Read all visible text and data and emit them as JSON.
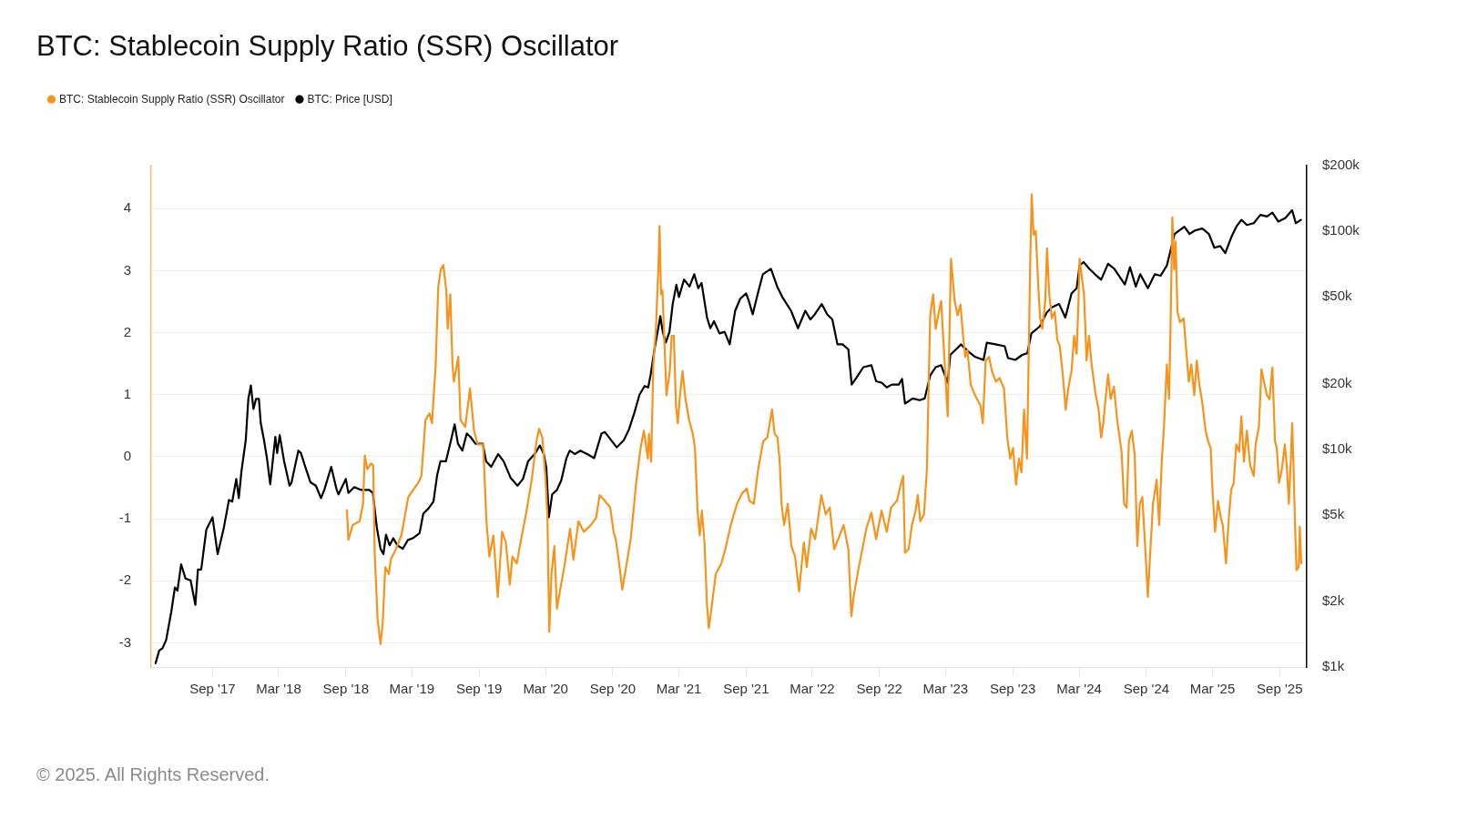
{
  "chart_data": {
    "type": "line",
    "title": "BTC: Stablecoin Supply Ratio (SSR) Oscillator",
    "series": [
      {
        "name": "BTC: Stablecoin Supply Ratio (SSR) Oscillator",
        "color": "#f7931a",
        "x": [
          "2018-09-04",
          "2018-09-08",
          "2018-09-20",
          "2018-10-09",
          "2018-10-18",
          "2018-10-23",
          "2018-10-30",
          "2018-11-09",
          "2018-11-15",
          "2018-11-19",
          "2018-11-27",
          "2018-12-05",
          "2018-12-11",
          "2018-12-18",
          "2018-12-28",
          "2019-01-02",
          "2019-01-16",
          "2019-01-31",
          "2019-02-19",
          "2019-03-04",
          "2019-03-18",
          "2019-03-27",
          "2019-04-07",
          "2019-04-18",
          "2019-04-25",
          "2019-05-05",
          "2019-05-12",
          "2019-05-19",
          "2019-05-26",
          "2019-06-03",
          "2019-06-07",
          "2019-06-14",
          "2019-06-20",
          "2019-06-24",
          "2019-07-06",
          "2019-07-12",
          "2019-07-25",
          "2019-08-07",
          "2019-08-18",
          "2019-08-28",
          "2019-09-12",
          "2019-09-21",
          "2019-09-29",
          "2019-10-10",
          "2019-10-22",
          "2019-11-03",
          "2019-11-13",
          "2019-11-24",
          "2019-12-01",
          "2019-12-13",
          "2019-12-25",
          "2020-01-09",
          "2020-01-23",
          "2020-02-05",
          "2020-02-12",
          "2020-02-21",
          "2020-03-01",
          "2020-03-06",
          "2020-03-11",
          "2020-03-17",
          "2020-03-25",
          "2020-04-01",
          "2020-04-09",
          "2020-04-21",
          "2020-05-07",
          "2020-05-16",
          "2020-05-30",
          "2020-06-14",
          "2020-07-03",
          "2020-07-17",
          "2020-07-27",
          "2020-08-06",
          "2020-08-25",
          "2020-09-03",
          "2020-09-09",
          "2020-09-17",
          "2020-09-27",
          "2020-10-09",
          "2020-10-20",
          "2020-11-04",
          "2020-11-16",
          "2020-11-25",
          "2020-12-06",
          "2020-12-09",
          "2020-12-15",
          "2020-12-21",
          "2020-12-28",
          "2021-01-04",
          "2021-01-07",
          "2021-01-11",
          "2021-01-15",
          "2021-01-20",
          "2021-01-26",
          "2021-02-04",
          "2021-02-09",
          "2021-02-15",
          "2021-02-21",
          "2021-02-26",
          "2021-03-04",
          "2021-03-11",
          "2021-03-19",
          "2021-03-29",
          "2021-04-08",
          "2021-04-14",
          "2021-04-21",
          "2021-04-27",
          "2021-05-03",
          "2021-05-10",
          "2021-05-17",
          "2021-05-22",
          "2021-05-29",
          "2021-06-10",
          "2021-06-25",
          "2021-07-06",
          "2021-07-21",
          "2021-08-07",
          "2021-08-21",
          "2021-09-03",
          "2021-09-10",
          "2021-09-22",
          "2021-10-04",
          "2021-10-18",
          "2021-10-29",
          "2021-11-11",
          "2021-11-18",
          "2021-11-26",
          "2021-12-02",
          "2021-12-07",
          "2021-12-14",
          "2021-12-24",
          "2022-01-03",
          "2022-01-13",
          "2022-01-24",
          "2022-02-06",
          "2022-02-14",
          "2022-02-26",
          "2022-03-09",
          "2022-03-26",
          "2022-04-07",
          "2022-04-18",
          "2022-04-30",
          "2022-05-15",
          "2022-05-26",
          "2022-06-08",
          "2022-06-16",
          "2022-06-23",
          "2022-07-05",
          "2022-07-18",
          "2022-07-27",
          "2022-08-10",
          "2022-08-23",
          "2022-09-07",
          "2022-09-21",
          "2022-10-03",
          "2022-10-19",
          "2022-10-28",
          "2022-11-05",
          "2022-11-10",
          "2022-11-20",
          "2022-11-29",
          "2022-12-09",
          "2022-12-15",
          "2022-12-22",
          "2023-01-01",
          "2023-01-09",
          "2023-01-13",
          "2023-01-18",
          "2023-01-26",
          "2023-02-02",
          "2023-02-09",
          "2023-02-17",
          "2023-02-24",
          "2023-03-07",
          "2023-03-16",
          "2023-03-26",
          "2023-04-03",
          "2023-04-11",
          "2023-04-18",
          "2023-04-24",
          "2023-04-30",
          "2023-05-09",
          "2023-05-21",
          "2023-06-05",
          "2023-06-11",
          "2023-06-19",
          "2023-06-28",
          "2023-07-06",
          "2023-07-17",
          "2023-07-27",
          "2023-08-08",
          "2023-08-17",
          "2023-08-25",
          "2023-09-02",
          "2023-09-10",
          "2023-09-18",
          "2023-09-25",
          "2023-10-02",
          "2023-10-10",
          "2023-10-14",
          "2023-10-19",
          "2023-10-23",
          "2023-10-28",
          "2023-11-03",
          "2023-11-10",
          "2023-11-15",
          "2023-11-21",
          "2023-11-29",
          "2023-12-04",
          "2023-12-10",
          "2023-12-17",
          "2023-12-25",
          "2024-01-01",
          "2024-01-08",
          "2024-01-16",
          "2024-01-24",
          "2024-01-31",
          "2024-02-09",
          "2024-02-16",
          "2024-02-23",
          "2024-02-28",
          "2024-03-02",
          "2024-03-08",
          "2024-03-14",
          "2024-03-18",
          "2024-03-21",
          "2024-03-28",
          "2024-04-04",
          "2024-04-14",
          "2024-04-23",
          "2024-04-30",
          "2024-05-06",
          "2024-05-12",
          "2024-05-19",
          "2024-05-26",
          "2024-06-04",
          "2024-06-13",
          "2024-06-25",
          "2024-07-02",
          "2024-07-09",
          "2024-07-15",
          "2024-07-23",
          "2024-07-31",
          "2024-08-07",
          "2024-08-14",
          "2024-08-21",
          "2024-08-29",
          "2024-09-05",
          "2024-09-12",
          "2024-09-19",
          "2024-09-29",
          "2024-10-06",
          "2024-10-13",
          "2024-10-19",
          "2024-10-27",
          "2024-11-02",
          "2024-11-06",
          "2024-11-11",
          "2024-11-16",
          "2024-11-20",
          "2024-11-25",
          "2024-12-02",
          "2024-12-12",
          "2024-12-19",
          "2024-12-26",
          "2025-01-02",
          "2025-01-10",
          "2025-01-17",
          "2025-01-24",
          "2025-02-01",
          "2025-02-10",
          "2025-02-17",
          "2025-02-24",
          "2025-03-01",
          "2025-03-08",
          "2025-03-16",
          "2025-03-24",
          "2025-03-29",
          "2025-04-07",
          "2025-04-14",
          "2025-04-21",
          "2025-04-28",
          "2025-05-05",
          "2025-05-13",
          "2025-05-19",
          "2025-05-26",
          "2025-06-03",
          "2025-06-12",
          "2025-06-22",
          "2025-06-27",
          "2025-07-06",
          "2025-07-13",
          "2025-07-20",
          "2025-07-28",
          "2025-08-04",
          "2025-08-12",
          "2025-08-19",
          "2025-08-24",
          "2025-08-30",
          "2025-09-07",
          "2025-09-15",
          "2025-09-21",
          "2025-09-26",
          "2025-10-02",
          "2025-10-05",
          "2025-10-09",
          "2025-10-13",
          "2025-10-17",
          "2025-10-23",
          "2025-10-26",
          "2025-10-30"
        ],
        "values": [
          -0.86,
          -1.34,
          -1.1,
          -1.04,
          -0.76,
          0.02,
          -0.2,
          -0.11,
          -0.14,
          -1.55,
          -2.62,
          -3.02,
          -2.68,
          -1.78,
          -1.89,
          -1.66,
          -1.49,
          -1.27,
          -0.65,
          -0.54,
          -0.42,
          -0.31,
          0.59,
          0.7,
          0.54,
          1.49,
          2.74,
          3.02,
          3.09,
          2.68,
          2.06,
          2.62,
          1.49,
          1.21,
          1.61,
          0.59,
          0.48,
          1.1,
          0.42,
          0.2,
          0.2,
          -1.04,
          -1.61,
          -1.27,
          -2.26,
          -1.21,
          -1.38,
          -2.06,
          -1.61,
          -1.72,
          -1.33,
          -0.87,
          -0.37,
          0.25,
          0.45,
          0.31,
          -0.37,
          -0.99,
          -2.82,
          -1.89,
          -1.44,
          -2.45,
          -2.17,
          -1.78,
          -1.16,
          -1.66,
          -1.04,
          -1.21,
          -1.1,
          -0.99,
          -0.62,
          -0.68,
          -0.82,
          -1.21,
          -1.33,
          -1.66,
          -2.14,
          -1.72,
          -1.33,
          -0.42,
          0.14,
          0.42,
          -0.03,
          0.37,
          -0.08,
          1.49,
          2.06,
          3.07,
          3.72,
          2.62,
          2.68,
          1.89,
          0.99,
          1.38,
          1.95,
          1.95,
          0.82,
          0.54,
          0.99,
          1.38,
          0.93,
          0.59,
          0.37,
          0.14,
          -0.87,
          -1.27,
          -0.87,
          -1.38,
          -2.4,
          -2.76,
          -2.45,
          -1.89,
          -1.72,
          -1.49,
          -1.1,
          -0.76,
          -0.59,
          -0.51,
          -0.71,
          -0.76,
          -0.2,
          0.25,
          0.31,
          0.76,
          0.37,
          0.31,
          -0.08,
          -0.76,
          -1.1,
          -0.76,
          -1.44,
          -1.61,
          -2.17,
          -1.38,
          -1.78,
          -1.16,
          -1.33,
          -0.62,
          -0.93,
          -0.82,
          -1.49,
          -1.27,
          -1.1,
          -1.49,
          -2.57,
          -2.23,
          -1.83,
          -1.44,
          -1.16,
          -0.9,
          -1.33,
          -0.87,
          -1.21,
          -0.82,
          -0.71,
          -0.48,
          -0.31,
          -1.55,
          -1.49,
          -1.1,
          -0.87,
          -0.62,
          -1.04,
          -0.93,
          -0.2,
          0.93,
          2.28,
          2.62,
          2.06,
          2.28,
          2.51,
          1.78,
          0.65,
          3.19,
          2.51,
          2.28,
          2.45,
          1.95,
          1.61,
          1.72,
          1.16,
          0.99,
          0.82,
          0.54,
          1.55,
          1.61,
          1.38,
          1.21,
          1.27,
          1.1,
          0.31,
          -0.03,
          0.14,
          -0.45,
          -0.03,
          -0.25,
          0.76,
          -0.03,
          1.38,
          3.19,
          4.23,
          3.58,
          3.64,
          2.74,
          2.23,
          2.06,
          2.51,
          3.36,
          2.62,
          2.23,
          2.34,
          1.89,
          1.78,
          1.33,
          0.76,
          1.1,
          1.38,
          1.95,
          1.66,
          2.51,
          3.19,
          2.9,
          2.62,
          2.06,
          1.55,
          1.95,
          1.49,
          1.04,
          0.76,
          0.31,
          0.54,
          0.93,
          1.33,
          0.93,
          1.13,
          0.59,
          0.08,
          -0.76,
          -0.82,
          0.25,
          0.42,
          0.03,
          -1.44,
          -0.76,
          -0.65,
          -1.49,
          -2.26,
          -1.49,
          -0.76,
          -0.37,
          -1.1,
          -0.08,
          0.48,
          1.49,
          0.93,
          2.06,
          3.86,
          3.02,
          3.47,
          2.34,
          2.17,
          2.23,
          1.72,
          1.21,
          1.49,
          0.99,
          1.55,
          1.16,
          0.87,
          0.42,
          0.25,
          0.14,
          -0.54,
          -1.21,
          -0.71,
          -0.99,
          -1.1,
          -1.72,
          -1.04,
          -0.54,
          -0.42,
          0.2,
          0.08,
          0.65,
          -0.08,
          0.42,
          -0.14,
          -0.31,
          0.2,
          0.48,
          1.41,
          1.21,
          0.99,
          0.93,
          1.44,
          0.25,
          0.14,
          -0.42,
          -0.2,
          0.2,
          -0.2,
          -0.76,
          0.03,
          0.54,
          -0.2,
          -1.1,
          -1.83,
          -1.78,
          -1.13,
          -1.72
        ]
      },
      {
        "name": "BTC: Price [USD]",
        "color": "#000000",
        "axis": "y2",
        "x": [
          "2017-03-29",
          "2017-04-08",
          "2017-04-17",
          "2017-04-27",
          "2017-05-11",
          "2017-05-21",
          "2017-05-28",
          "2017-06-07",
          "2017-06-19",
          "2017-07-03",
          "2017-07-16",
          "2017-07-23",
          "2017-08-01",
          "2017-08-15",
          "2017-09-01",
          "2017-09-15",
          "2017-10-02",
          "2017-10-16",
          "2017-10-25",
          "2017-11-05",
          "2017-11-12",
          "2017-11-19",
          "2017-12-01",
          "2017-12-08",
          "2017-12-15",
          "2017-12-22",
          "2017-12-29",
          "2018-01-06",
          "2018-01-11",
          "2018-01-20",
          "2018-01-28",
          "2018-02-06",
          "2018-02-20",
          "2018-02-25",
          "2018-03-04",
          "2018-03-16",
          "2018-03-31",
          "2018-04-05",
          "2018-04-24",
          "2018-05-01",
          "2018-05-13",
          "2018-05-27",
          "2018-06-11",
          "2018-06-25",
          "2018-07-04",
          "2018-07-23",
          "2018-08-07",
          "2018-08-12",
          "2018-09-01",
          "2018-09-08",
          "2018-09-24",
          "2018-10-13",
          "2018-11-04",
          "2018-11-14",
          "2018-11-25",
          "2018-12-05",
          "2018-12-13",
          "2018-12-20",
          "2018-12-30",
          "2019-01-09",
          "2019-01-20",
          "2019-02-04",
          "2019-02-18",
          "2019-03-03",
          "2019-03-22",
          "2019-04-01",
          "2019-04-15",
          "2019-04-29",
          "2019-05-09",
          "2019-05-18",
          "2019-06-02",
          "2019-06-16",
          "2019-06-26",
          "2019-07-05",
          "2019-07-17",
          "2019-07-29",
          "2019-08-08",
          "2019-08-22",
          "2019-09-11",
          "2019-09-20",
          "2019-10-04",
          "2019-10-23",
          "2019-11-07",
          "2019-11-26",
          "2019-12-15",
          "2019-12-30",
          "2020-01-13",
          "2020-02-02",
          "2020-02-14",
          "2020-02-25",
          "2020-03-03",
          "2020-03-10",
          "2020-03-19",
          "2020-04-01",
          "2020-04-13",
          "2020-04-27",
          "2020-05-06",
          "2020-05-20",
          "2020-06-04",
          "2020-06-23",
          "2020-07-12",
          "2020-08-01",
          "2020-08-10",
          "2020-09-04",
          "2020-09-12",
          "2020-10-01",
          "2020-10-15",
          "2020-10-30",
          "2020-11-13",
          "2020-11-27",
          "2020-12-07",
          "2020-12-14",
          "2020-12-24",
          "2021-01-05",
          "2021-01-09",
          "2021-01-16",
          "2021-01-24",
          "2021-02-03",
          "2021-02-12",
          "2021-02-22",
          "2021-03-01",
          "2021-03-15",
          "2021-03-30",
          "2021-04-12",
          "2021-04-23",
          "2021-05-02",
          "2021-05-17",
          "2021-05-26",
          "2021-06-05",
          "2021-06-20",
          "2021-07-04",
          "2021-07-18",
          "2021-08-02",
          "2021-08-16",
          "2021-09-01",
          "2021-09-08",
          "2021-09-19",
          "2021-10-03",
          "2021-10-17",
          "2021-11-08",
          "2021-11-25",
          "2021-12-09",
          "2022-01-02",
          "2022-01-21",
          "2022-02-10",
          "2022-02-24",
          "2022-03-08",
          "2022-03-27",
          "2022-04-11",
          "2022-04-25",
          "2022-05-09",
          "2022-05-23",
          "2022-06-08",
          "2022-06-17",
          "2022-06-30",
          "2022-07-19",
          "2022-08-10",
          "2022-08-23",
          "2022-09-07",
          "2022-09-21",
          "2022-10-05",
          "2022-10-24",
          "2022-11-02",
          "2022-11-10",
          "2022-12-01",
          "2022-12-20",
          "2023-01-03",
          "2023-01-18",
          "2023-02-02",
          "2023-02-17",
          "2023-03-07",
          "2023-03-14",
          "2023-04-03",
          "2023-04-12",
          "2023-05-01",
          "2023-05-20",
          "2023-06-13",
          "2023-06-22",
          "2023-07-16",
          "2023-08-10",
          "2023-08-19",
          "2023-09-08",
          "2023-09-27",
          "2023-10-11",
          "2023-10-22",
          "2023-11-14",
          "2023-12-03",
          "2023-12-17",
          "2024-01-06",
          "2024-01-23",
          "2024-02-09",
          "2024-02-23",
          "2024-03-02",
          "2024-03-13",
          "2024-03-29",
          "2024-04-13",
          "2024-04-30",
          "2024-05-19",
          "2024-06-05",
          "2024-07-04",
          "2024-07-18",
          "2024-08-03",
          "2024-08-15",
          "2024-09-05",
          "2024-09-24",
          "2024-10-10",
          "2024-10-27",
          "2024-11-08",
          "2024-11-17",
          "2024-12-14",
          "2024-12-28",
          "2025-01-12",
          "2025-02-01",
          "2025-02-19",
          "2025-03-06",
          "2025-03-22",
          "2025-04-05",
          "2025-04-21",
          "2025-05-05",
          "2025-05-19",
          "2025-06-03",
          "2025-06-22",
          "2025-07-10",
          "2025-07-28",
          "2025-08-12",
          "2025-08-28",
          "2025-09-16",
          "2025-10-05",
          "2025-10-15",
          "2025-10-29"
        ],
        "values": [
          1040,
          1190,
          1220,
          1330,
          1790,
          2320,
          2240,
          2960,
          2550,
          2500,
          1930,
          2800,
          2800,
          4270,
          4870,
          3300,
          4360,
          5850,
          5750,
          7300,
          5960,
          7870,
          11000,
          17000,
          19600,
          15300,
          17000,
          17000,
          13200,
          11000,
          9100,
          6900,
          11400,
          9600,
          11600,
          8800,
          6800,
          7000,
          9850,
          9600,
          8300,
          7050,
          6800,
          5960,
          6500,
          8300,
          6500,
          6200,
          7300,
          6300,
          6700,
          6500,
          6500,
          6300,
          4360,
          3490,
          3300,
          4050,
          3620,
          3900,
          3620,
          3490,
          3830,
          3900,
          4120,
          5060,
          5340,
          5750,
          7600,
          8800,
          8800,
          11000,
          13000,
          10600,
          9850,
          11800,
          11400,
          10600,
          10600,
          8800,
          8300,
          9500,
          8800,
          7400,
          6800,
          7300,
          8800,
          9600,
          10400,
          9500,
          8200,
          4870,
          6200,
          6500,
          7200,
          9100,
          9850,
          9500,
          9850,
          9500,
          9100,
          11800,
          12000,
          10600,
          10200,
          11000,
          12300,
          14700,
          17800,
          19500,
          19200,
          22200,
          28700,
          37200,
          40800,
          34500,
          30900,
          34500,
          46400,
          56900,
          50000,
          60100,
          55800,
          63600,
          54800,
          58000,
          40200,
          35900,
          38700,
          34000,
          34600,
          30300,
          43200,
          49100,
          51900,
          48200,
          41600,
          51900,
          63600,
          67300,
          55800,
          50000,
          43200,
          35900,
          43200,
          39400,
          41600,
          46400,
          41600,
          39400,
          30300,
          30300,
          28700,
          19800,
          21300,
          23800,
          24300,
          20500,
          20200,
          19200,
          19800,
          19800,
          21000,
          16200,
          17100,
          16800,
          17100,
          21800,
          23800,
          24300,
          20200,
          27100,
          29200,
          30300,
          28200,
          26600,
          25700,
          30800,
          30300,
          29700,
          26200,
          25700,
          27100,
          27600,
          34000,
          36600,
          42400,
          44800,
          46400,
          40200,
          51900,
          54800,
          69700,
          72300,
          67300,
          63600,
          60000,
          71000,
          67300,
          57000,
          68500,
          55800,
          63600,
          54800,
          63600,
          62600,
          69700,
          84100,
          97300,
          105000,
          97300,
          101000,
          103000,
          97300,
          84100,
          85600,
          79500,
          93700,
          105000,
          113000,
          107000,
          109000,
          119000,
          117000,
          122000,
          111000,
          115000,
          125000,
          109000,
          113000
        ]
      }
    ],
    "xlim": [
      "2017-03-17",
      "2025-11-14"
    ],
    "xticks": [
      {
        "value": "2017-09-01",
        "label": "Sep '17"
      },
      {
        "value": "2018-03-01",
        "label": "Mar '18"
      },
      {
        "value": "2018-09-01",
        "label": "Sep '18"
      },
      {
        "value": "2019-03-01",
        "label": "Mar '19"
      },
      {
        "value": "2019-09-01",
        "label": "Sep '19"
      },
      {
        "value": "2020-03-01",
        "label": "Mar '20"
      },
      {
        "value": "2020-09-01",
        "label": "Sep '20"
      },
      {
        "value": "2021-03-01",
        "label": "Mar '21"
      },
      {
        "value": "2021-09-01",
        "label": "Sep '21"
      },
      {
        "value": "2022-03-01",
        "label": "Mar '22"
      },
      {
        "value": "2022-09-01",
        "label": "Sep '22"
      },
      {
        "value": "2023-03-01",
        "label": "Mar '23"
      },
      {
        "value": "2023-09-01",
        "label": "Sep '23"
      },
      {
        "value": "2024-03-01",
        "label": "Mar '24"
      },
      {
        "value": "2024-09-01",
        "label": "Sep '24"
      },
      {
        "value": "2025-03-01",
        "label": "Mar '25"
      },
      {
        "value": "2025-09-01",
        "label": "Sep '25"
      }
    ],
    "ylim": [
      -3.39,
      4.69
    ],
    "yticks": [
      -3,
      -2,
      -1,
      0,
      1,
      2,
      3,
      4
    ],
    "y2lim": [
      1000,
      200000
    ],
    "y2ticks": [
      {
        "value": 1000,
        "label": "$1k"
      },
      {
        "value": 2000,
        "label": "$2k"
      },
      {
        "value": 5000,
        "label": "$5k"
      },
      {
        "value": 10000,
        "label": "$10k"
      },
      {
        "value": 20000,
        "label": "$20k"
      },
      {
        "value": 50000,
        "label": "$50k"
      },
      {
        "value": 100000,
        "label": "$100k"
      },
      {
        "value": 200000,
        "label": "$200k"
      }
    ],
    "log": "y2",
    "grid": "y",
    "legend": "top left",
    "annotations": [
      "© 2025. All Rights Reserved."
    ]
  }
}
